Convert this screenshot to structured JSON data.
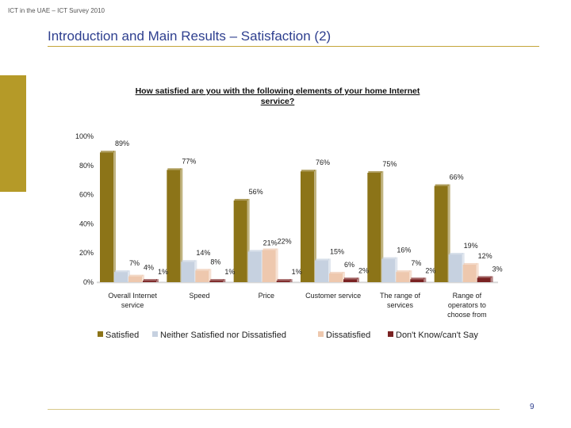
{
  "header": {
    "note": "ICT in the UAE – ICT Survey 2010"
  },
  "slide": {
    "title": "Introduction and Main Results – Satisfaction (2)",
    "page_number": "9"
  },
  "colors": {
    "satisfied": "#8c7418",
    "neutral": "#c6d1e0",
    "dissatisfied": "#eec8ae",
    "dont_know": "#7a2222",
    "title": "#2e3f8f",
    "accent": "#b59a28"
  },
  "chart_data": {
    "type": "bar",
    "title_lines": [
      "How satisfied are you with the following elements of your home Internet",
      "service?"
    ],
    "categories": [
      [
        "Overall Internet",
        "service"
      ],
      [
        "Speed"
      ],
      [
        "Price"
      ],
      [
        "Customer service"
      ],
      [
        "The range of",
        "services"
      ],
      [
        "Range of",
        "operators to",
        "choose from"
      ]
    ],
    "series": [
      {
        "name": "Satisfied",
        "values": [
          89,
          77,
          56,
          76,
          75,
          66
        ]
      },
      {
        "name": "Neither Satisfied nor Dissatisfied",
        "values": [
          7,
          14,
          21,
          15,
          16,
          19
        ]
      },
      {
        "name": "Dissatisfied",
        "values": [
          4,
          8,
          22,
          6,
          7,
          12
        ]
      },
      {
        "name": "Don't Know/can't Say",
        "values": [
          1,
          1,
          1,
          2,
          2,
          3
        ]
      }
    ],
    "ylim": [
      0,
      100
    ],
    "yticks": [
      "0%",
      "20%",
      "40%",
      "60%",
      "80%",
      "100%"
    ],
    "value_suffix": "%",
    "legend_position": "bottom"
  }
}
